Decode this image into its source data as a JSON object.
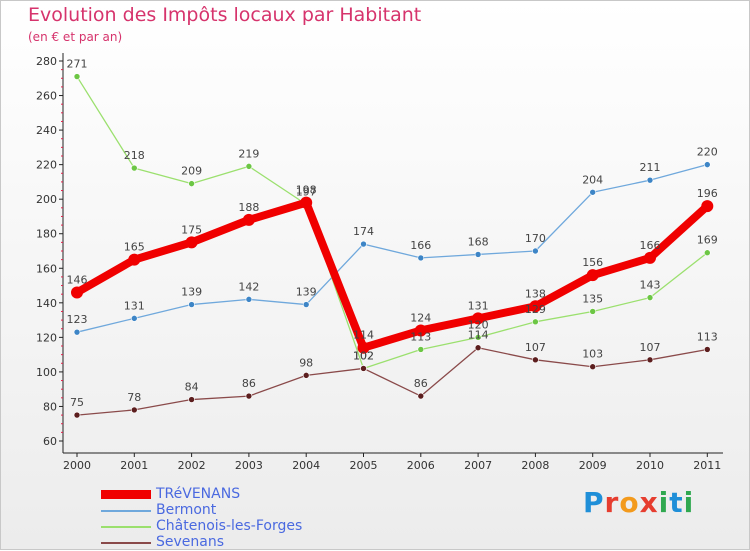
{
  "header": {
    "title": "Evolution des Impôts locaux par Habitant",
    "subtitle": "(en € et par an)"
  },
  "logo": {
    "letters": [
      "P",
      "r",
      "o",
      "x",
      "i",
      "t",
      "i"
    ],
    "colors": [
      "#1f8fd8",
      "#e63d2f",
      "#f39a1c",
      "#e63d2f",
      "#2fa84f",
      "#1f8fd8",
      "#2fa84f"
    ]
  },
  "chart_data": {
    "type": "line",
    "title": "Evolution des Impôts locaux par Habitant",
    "subtitle": "(en € et par an)",
    "xlabel": "",
    "ylabel": "",
    "categories": [
      "2000",
      "2001",
      "2002",
      "2003",
      "2004",
      "2005",
      "2006",
      "2007",
      "2008",
      "2009",
      "2010",
      "2011"
    ],
    "ylim": [
      60,
      280
    ],
    "yticks": [
      60,
      80,
      100,
      120,
      140,
      160,
      180,
      200,
      220,
      240,
      260,
      280
    ],
    "grid": false,
    "legend": "bottom-left",
    "series": [
      {
        "name": "TRéVENANS",
        "color": "#f00000",
        "dot": "#f00000",
        "weight": "bold",
        "values": [
          146,
          165,
          175,
          188,
          198,
          114,
          124,
          131,
          138,
          156,
          166,
          196
        ]
      },
      {
        "name": "Bermont",
        "color": "#6fa8dc",
        "dot": "#3d85c6",
        "weight": "thin",
        "values": [
          123,
          131,
          139,
          142,
          139,
          174,
          166,
          168,
          170,
          204,
          211,
          220
        ]
      },
      {
        "name": "Châtenois-les-Forges",
        "color": "#9be06e",
        "dot": "#6cc644",
        "weight": "thin",
        "values": [
          271,
          218,
          209,
          219,
          197,
          102,
          113,
          120,
          129,
          135,
          143,
          169
        ]
      },
      {
        "name": "Sevenans",
        "color": "#8a4a4a",
        "dot": "#5c1e1e",
        "weight": "thin",
        "values": [
          75,
          78,
          84,
          86,
          98,
          102,
          86,
          114,
          107,
          103,
          107,
          113
        ]
      }
    ]
  }
}
